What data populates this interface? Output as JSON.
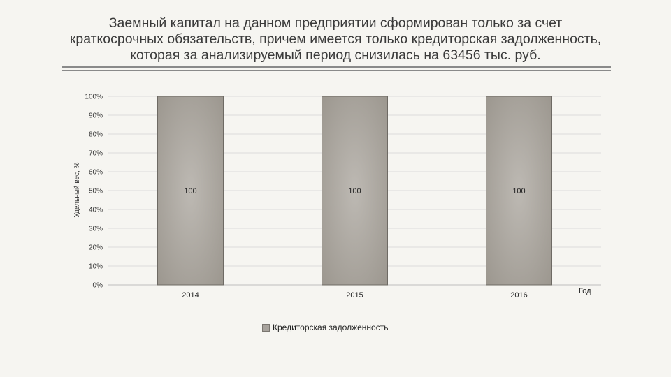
{
  "title_lines": [
    "Заемный капитал на данном предприятии сформирован только за счет",
    "краткосрочных обязательств, причем имеется только кредиторская задолженность,",
    "которая за анализируемый период снизилась на 63456 тыс. руб."
  ],
  "chart_data": {
    "type": "bar",
    "stacked_percent": true,
    "categories": [
      "2014",
      "2015",
      "2016"
    ],
    "series": [
      {
        "name": "Кредиторская задолженность",
        "values": [
          100,
          100,
          100
        ],
        "color": "#a8a39d"
      }
    ],
    "data_labels": [
      "100",
      "100",
      "100"
    ],
    "xlabel": "Год",
    "ylabel": "Удельный вес, %",
    "ylim": [
      0,
      100
    ],
    "y_ticks": [
      "0%",
      "10%",
      "20%",
      "30%",
      "40%",
      "50%",
      "60%",
      "70%",
      "80%",
      "90%",
      "100%"
    ],
    "grid": true,
    "legend_position": "bottom"
  }
}
